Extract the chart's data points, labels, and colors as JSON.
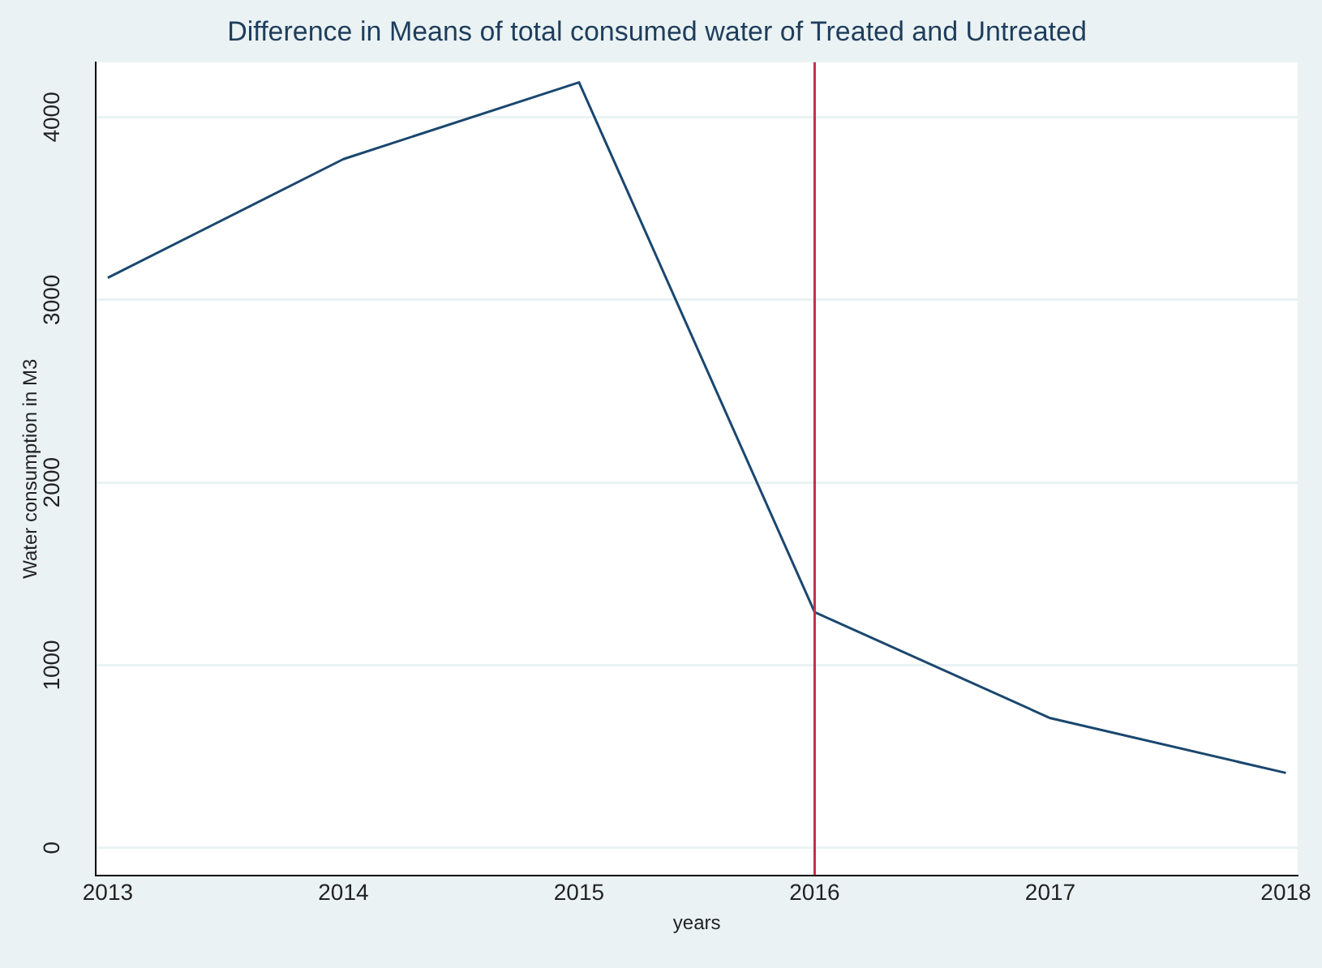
{
  "chart_data": {
    "type": "line",
    "title": "Difference in Means of total consumed water of Treated and Untreated",
    "xlabel": "years",
    "ylabel": "Water consumption in M3",
    "x": [
      2013,
      2014,
      2015,
      2016,
      2017,
      2018
    ],
    "series": [
      {
        "color": "#1a476f",
        "values": [
          3120,
          3770,
          4190,
          1290,
          710,
          410
        ]
      }
    ],
    "xlim": [
      2012.95,
      2018.05
    ],
    "xticks": [
      2013,
      2014,
      2015,
      2016,
      2017,
      2018
    ],
    "ylim": [
      -150,
      4300
    ],
    "yticks": [
      0,
      1000,
      2000,
      3000,
      4000
    ],
    "ref_lines": [
      {
        "axis": "x",
        "value": 2016,
        "color": "#c0304a"
      }
    ],
    "grid": "y",
    "legend": false,
    "marker": "none",
    "line_style": "solid"
  }
}
